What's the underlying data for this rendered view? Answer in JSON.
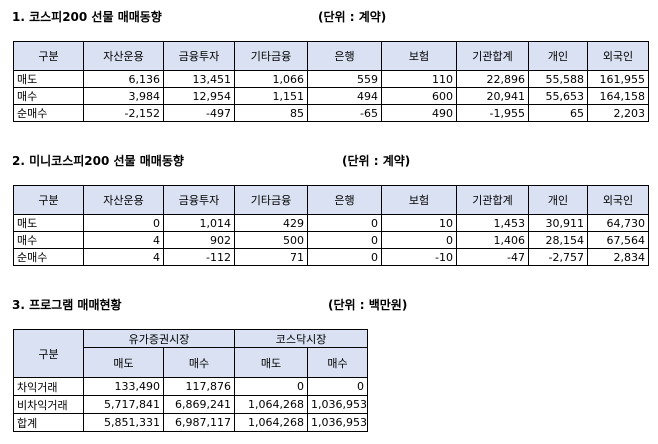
{
  "section1": {
    "title": "1. 코스피200 선물 매매동향",
    "unit": "(단위 : 계약)",
    "headers": [
      "구분",
      "자산운용",
      "금융투자",
      "기타금융",
      "은행",
      "보험",
      "기관합계",
      "개인",
      "외국인"
    ],
    "rows": [
      [
        "매도",
        "6,136",
        "13,451",
        "1,066",
        "559",
        "110",
        "22,896",
        "55,588",
        "161,955"
      ],
      [
        "매수",
        "3,984",
        "12,954",
        "1,151",
        "494",
        "600",
        "20,941",
        "55,653",
        "164,158"
      ],
      [
        "순매수",
        "-2,152",
        "-497",
        "85",
        "-65",
        "490",
        "-1,955",
        "65",
        "2,203"
      ]
    ]
  },
  "section2": {
    "title": "2. 미니코스피200 선물 매매동향",
    "unit": "(단위 : 계약)",
    "headers": [
      "구분",
      "자산운용",
      "금융투자",
      "기타금융",
      "은행",
      "보험",
      "기관합계",
      "개인",
      "외국인"
    ],
    "rows": [
      [
        "매도",
        "0",
        "1,014",
        "429",
        "0",
        "10",
        "1,453",
        "30,911",
        "64,730"
      ],
      [
        "매수",
        "4",
        "902",
        "500",
        "0",
        "0",
        "1,406",
        "28,154",
        "67,564"
      ],
      [
        "순매수",
        "4",
        "-112",
        "71",
        "0",
        "-10",
        "-47",
        "-2,757",
        "2,834"
      ]
    ]
  },
  "section3": {
    "title": "3. 프로그램 매매현황",
    "unit": "(단위 : 백만원)",
    "rowhead": "구분",
    "groups": [
      "유가증권시장",
      "코스닥시장"
    ],
    "subheaders": [
      "매도",
      "매수",
      "매도",
      "매수"
    ],
    "rows": [
      [
        "차익거래",
        "133,490",
        "117,876",
        "0",
        "0"
      ],
      [
        "비차익거래",
        "5,717,841",
        "6,869,241",
        "1,064,268",
        "1,036,953"
      ],
      [
        "합계",
        "5,851,331",
        "6,987,117",
        "1,064,268",
        "1,036,953"
      ]
    ]
  }
}
